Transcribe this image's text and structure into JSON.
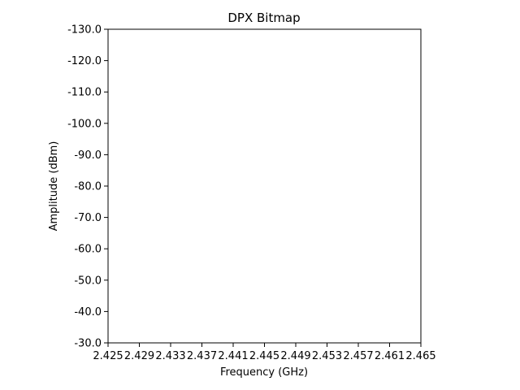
{
  "chart_data": {
    "type": "heatmap",
    "title": "DPX Bitmap",
    "xlabel": "Frequency (GHz)",
    "ylabel": "Amplitude (dBm)",
    "xlim": [
      2.425,
      2.465
    ],
    "ylim": [
      -30.0,
      -130.0
    ],
    "x_ticks": [
      "2.425",
      "2.429",
      "2.433",
      "2.437",
      "2.441",
      "2.445",
      "2.449",
      "2.453",
      "2.457",
      "2.461",
      "2.465"
    ],
    "y_ticks": [
      "-130.0",
      "-120.0",
      "-110.0",
      "-100.0",
      "-90.0",
      "-80.0",
      "-70.0",
      "-60.0",
      "-50.0",
      "-40.0",
      "-30.0"
    ],
    "grid": false,
    "values": []
  }
}
